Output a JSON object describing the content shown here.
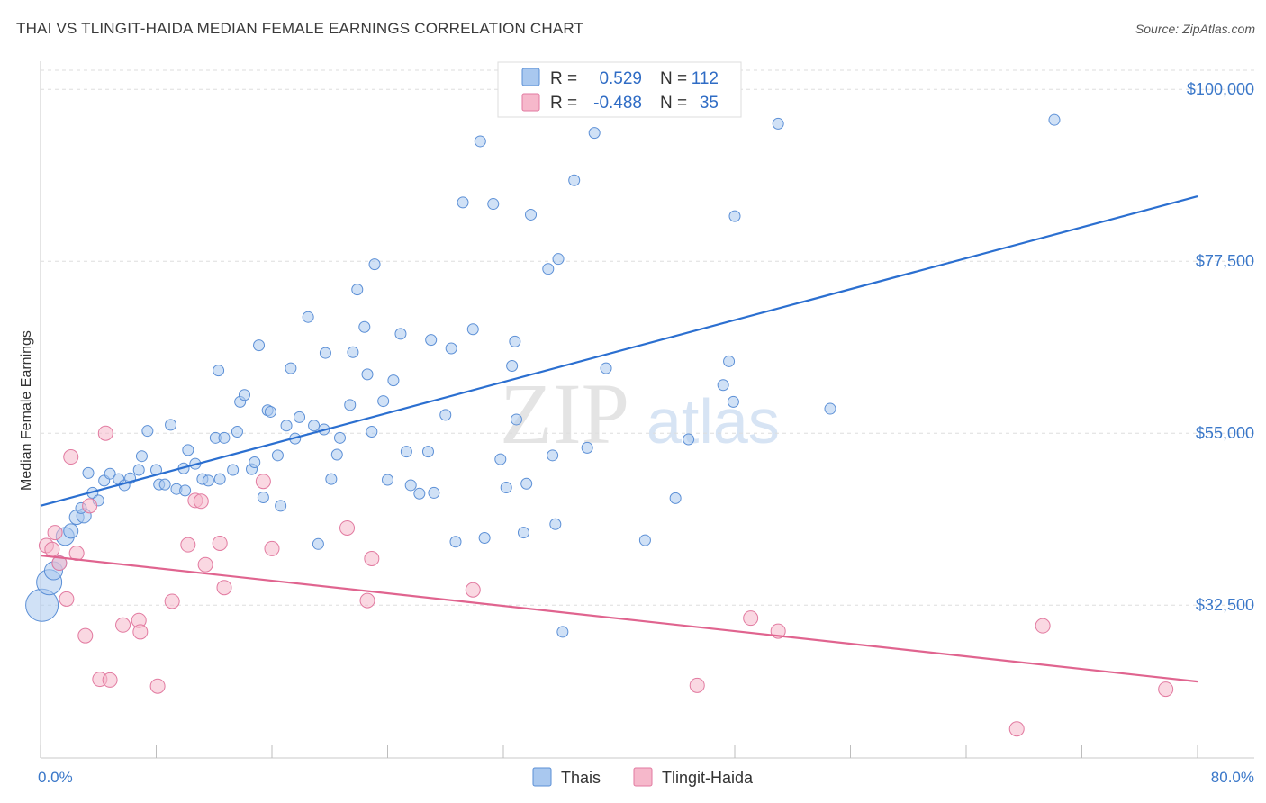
{
  "title": "THAI VS TLINGIT-HAIDA MEDIAN FEMALE EARNINGS CORRELATION CHART",
  "source": "Source: ZipAtlas.com",
  "watermark": {
    "zip": "ZIP",
    "atlas": "atlas"
  },
  "colors": {
    "thai_fill": "#a9c8ef",
    "thai_stroke": "#5b8fd6",
    "thai_line": "#2b6fd0",
    "tlingit_fill": "#f6b8cb",
    "tlingit_stroke": "#e27aa0",
    "tlingit_line": "#e0648f",
    "tick_text": "#3b78c9",
    "grid": "#dedede"
  },
  "legend": {
    "rows": [
      {
        "r_label": "R =",
        "r_value": "0.529",
        "n_label": "N =",
        "n_value": "112"
      },
      {
        "r_label": "R =",
        "r_value": "-0.488",
        "n_label": "N =",
        "n_value": "35"
      }
    ]
  },
  "bottom_legend": [
    "Thais",
    "Tlingit-Haida"
  ],
  "chart_data": {
    "type": "scatter",
    "title": "THAI VS TLINGIT-HAIDA MEDIAN FEMALE EARNINGS CORRELATION CHART",
    "xlabel": "",
    "ylabel": "Median Female Earnings",
    "xlim": [
      0,
      80
    ],
    "ylim": [
      12500,
      102500
    ],
    "x_tick_labels": [
      "0.0%",
      "80.0%"
    ],
    "y_ticks": [
      32500,
      55000,
      77500,
      100000
    ],
    "y_tick_labels": [
      "$32,500",
      "$55,000",
      "$77,500",
      "$100,000"
    ],
    "grid": true,
    "series": [
      {
        "name": "Thais",
        "R": 0.529,
        "N": 112,
        "trend": {
          "x": [
            0,
            80
          ],
          "y": [
            45500,
            86000
          ]
        },
        "points": [
          [
            0.1,
            32500,
            18
          ],
          [
            0.6,
            35500,
            14
          ],
          [
            0.9,
            37000,
            10
          ],
          [
            1.3,
            38000,
            8
          ],
          [
            1.7,
            41500,
            10
          ],
          [
            2.1,
            42200,
            8
          ],
          [
            2.5,
            44000,
            8
          ],
          [
            3.0,
            44200,
            8
          ],
          [
            2.8,
            45200,
            6
          ],
          [
            3.6,
            47200,
            6
          ],
          [
            4.0,
            46200,
            6
          ],
          [
            3.3,
            49800,
            6
          ],
          [
            4.4,
            48800,
            6
          ],
          [
            4.8,
            49700,
            6
          ],
          [
            5.4,
            49000,
            6
          ],
          [
            5.8,
            48200,
            6
          ],
          [
            6.2,
            49100,
            6
          ],
          [
            6.8,
            50200,
            6
          ],
          [
            7.0,
            52000,
            6
          ],
          [
            7.4,
            55300,
            6
          ],
          [
            8.0,
            50200,
            6
          ],
          [
            8.2,
            48300,
            6
          ],
          [
            8.6,
            48300,
            6
          ],
          [
            9.0,
            56100,
            6
          ],
          [
            9.4,
            47700,
            6
          ],
          [
            9.9,
            50400,
            6
          ],
          [
            10.0,
            47500,
            6
          ],
          [
            10.2,
            52800,
            6
          ],
          [
            10.7,
            51000,
            6
          ],
          [
            11.2,
            49000,
            6
          ],
          [
            11.6,
            48800,
            6
          ],
          [
            12.1,
            54400,
            6
          ],
          [
            12.4,
            49000,
            6
          ],
          [
            12.7,
            54400,
            6
          ],
          [
            12.3,
            63200,
            6
          ],
          [
            13.3,
            50200,
            6
          ],
          [
            13.6,
            55200,
            6
          ],
          [
            13.8,
            59100,
            6
          ],
          [
            14.1,
            60000,
            6
          ],
          [
            14.6,
            50300,
            6
          ],
          [
            14.8,
            51200,
            6
          ],
          [
            15.1,
            66500,
            6
          ],
          [
            15.4,
            46600,
            6
          ],
          [
            15.7,
            58000,
            6
          ],
          [
            15.9,
            57800,
            6
          ],
          [
            16.4,
            52100,
            6
          ],
          [
            16.6,
            45500,
            6
          ],
          [
            17.0,
            56000,
            6
          ],
          [
            17.3,
            63500,
            6
          ],
          [
            17.6,
            54300,
            6
          ],
          [
            17.9,
            57100,
            6
          ],
          [
            18.5,
            70200,
            6
          ],
          [
            18.9,
            56000,
            6
          ],
          [
            19.2,
            40500,
            6
          ],
          [
            19.6,
            55500,
            6
          ],
          [
            19.7,
            65500,
            6
          ],
          [
            20.1,
            49000,
            6
          ],
          [
            20.5,
            52200,
            6
          ],
          [
            20.7,
            54400,
            6
          ],
          [
            21.4,
            58700,
            6
          ],
          [
            21.6,
            65600,
            6
          ],
          [
            21.9,
            73800,
            6
          ],
          [
            22.4,
            68900,
            6
          ],
          [
            22.6,
            62700,
            6
          ],
          [
            22.9,
            55200,
            6
          ],
          [
            23.1,
            77100,
            6
          ],
          [
            23.7,
            59200,
            6
          ],
          [
            24.0,
            48900,
            6
          ],
          [
            24.4,
            61900,
            6
          ],
          [
            24.9,
            68000,
            6
          ],
          [
            25.3,
            52600,
            6
          ],
          [
            25.6,
            48200,
            6
          ],
          [
            26.2,
            47100,
            6
          ],
          [
            26.8,
            52600,
            6
          ],
          [
            27.0,
            67200,
            6
          ],
          [
            27.2,
            47200,
            6
          ],
          [
            28.0,
            57400,
            6
          ],
          [
            28.4,
            66100,
            6
          ],
          [
            28.7,
            40800,
            6
          ],
          [
            29.2,
            85200,
            6
          ],
          [
            29.9,
            68600,
            6
          ],
          [
            30.4,
            93200,
            6
          ],
          [
            30.7,
            41300,
            6
          ],
          [
            31.3,
            85000,
            6
          ],
          [
            31.8,
            51600,
            6
          ],
          [
            32.2,
            47900,
            6
          ],
          [
            32.6,
            63800,
            6
          ],
          [
            32.8,
            67000,
            6
          ],
          [
            32.9,
            56800,
            6
          ],
          [
            33.4,
            42000,
            6
          ],
          [
            33.6,
            48400,
            6
          ],
          [
            33.9,
            83600,
            6
          ],
          [
            35.1,
            76500,
            6
          ],
          [
            35.4,
            52100,
            6
          ],
          [
            35.6,
            43100,
            6
          ],
          [
            35.8,
            77800,
            6
          ],
          [
            36.1,
            29000,
            6
          ],
          [
            36.9,
            88100,
            6
          ],
          [
            37.8,
            53100,
            6
          ],
          [
            38.3,
            94300,
            6
          ],
          [
            39.1,
            63500,
            6
          ],
          [
            41.8,
            41000,
            6
          ],
          [
            43.9,
            46500,
            6
          ],
          [
            44.8,
            54200,
            6
          ],
          [
            47.2,
            61300,
            6
          ],
          [
            47.6,
            64400,
            6
          ],
          [
            47.9,
            59100,
            6
          ],
          [
            48.0,
            83400,
            6
          ],
          [
            51.0,
            95500,
            6
          ],
          [
            54.6,
            58200,
            6
          ],
          [
            70.1,
            96000,
            6
          ]
        ]
      },
      {
        "name": "Tlingit-Haida",
        "R": -0.488,
        "N": 35,
        "trend": {
          "x": [
            0,
            80
          ],
          "y": [
            39000,
            22500
          ]
        },
        "points": [
          [
            0.4,
            40300,
            8
          ],
          [
            0.8,
            39800,
            8
          ],
          [
            1.0,
            42000,
            8
          ],
          [
            1.3,
            38000,
            8
          ],
          [
            1.8,
            33300,
            8
          ],
          [
            2.1,
            51900,
            8
          ],
          [
            2.5,
            39300,
            8
          ],
          [
            3.1,
            28500,
            8
          ],
          [
            3.4,
            45500,
            8
          ],
          [
            4.1,
            22800,
            8
          ],
          [
            4.5,
            55000,
            8
          ],
          [
            4.8,
            22700,
            8
          ],
          [
            5.7,
            29900,
            8
          ],
          [
            6.8,
            30500,
            8
          ],
          [
            6.9,
            29000,
            8
          ],
          [
            8.1,
            21900,
            8
          ],
          [
            9.1,
            33000,
            8
          ],
          [
            10.2,
            40400,
            8
          ],
          [
            10.7,
            46200,
            8
          ],
          [
            11.1,
            46100,
            8
          ],
          [
            11.4,
            37800,
            8
          ],
          [
            12.4,
            40600,
            8
          ],
          [
            12.7,
            34800,
            8
          ],
          [
            15.4,
            48700,
            8
          ],
          [
            16.0,
            39900,
            8
          ],
          [
            21.2,
            42600,
            8
          ],
          [
            22.6,
            33100,
            8
          ],
          [
            22.9,
            38600,
            8
          ],
          [
            29.9,
            34500,
            8
          ],
          [
            45.4,
            22000,
            8
          ],
          [
            49.1,
            30800,
            8
          ],
          [
            51.0,
            29100,
            8
          ],
          [
            67.5,
            16300,
            8
          ],
          [
            69.3,
            29800,
            8
          ],
          [
            77.8,
            21500,
            8
          ]
        ]
      }
    ]
  }
}
